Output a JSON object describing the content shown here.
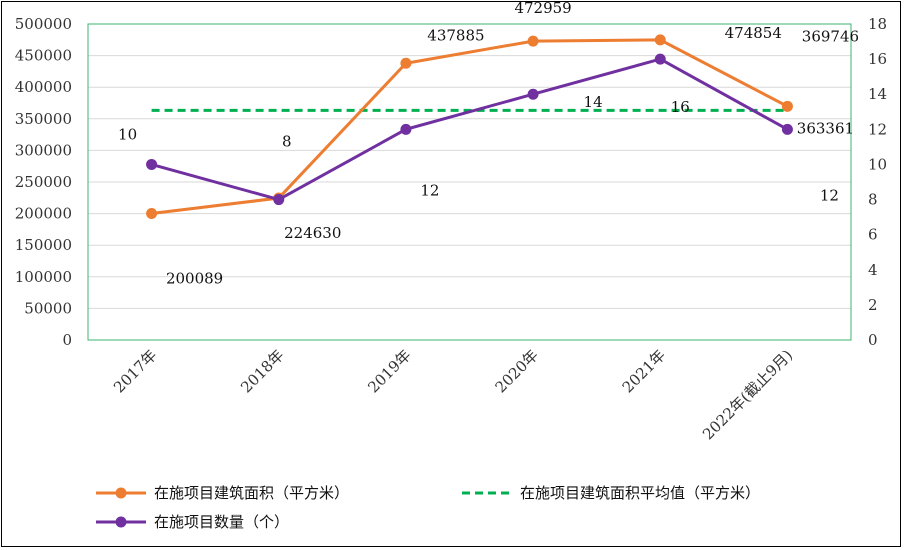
{
  "chart_data": {
    "type": "line",
    "categories": [
      "2017年",
      "2018年",
      "2019年",
      "2020年",
      "2021年",
      "2022年(截止9月)"
    ],
    "y_left": {
      "ticks": [
        "0",
        "50000",
        "100000",
        "150000",
        "200000",
        "250000",
        "300000",
        "350000",
        "400000",
        "450000",
        "500000"
      ],
      "range": [
        0,
        500000
      ]
    },
    "y_right": {
      "ticks": [
        "0",
        "2",
        "4",
        "6",
        "8",
        "10",
        "12",
        "14",
        "16",
        "18"
      ],
      "range": [
        0,
        18
      ]
    },
    "series": [
      {
        "name": "在施项目建筑面积（平方米）",
        "axis": "left",
        "color": "#ED7D31",
        "values": [
          200089,
          224630,
          437885,
          472959,
          474854,
          369746
        ],
        "labels": [
          "200089",
          "224630",
          "437885",
          "472959",
          "474854",
          "369746"
        ]
      },
      {
        "name": "在施项目数量（个）",
        "axis": "right",
        "color": "#7030A0",
        "values": [
          10,
          8,
          12,
          14,
          16,
          12
        ],
        "labels": [
          "10",
          "8",
          "12",
          "14",
          "16",
          "12"
        ]
      },
      {
        "name": "在施项目建筑面积平均值（平方米）",
        "axis": "left",
        "color": "#00B050",
        "dashed": true,
        "values": [
          363361,
          363361,
          363361,
          363361,
          363361,
          363361
        ],
        "labels": [
          "363361"
        ]
      }
    ],
    "grid": "horizontal",
    "legend_position": "bottom"
  }
}
